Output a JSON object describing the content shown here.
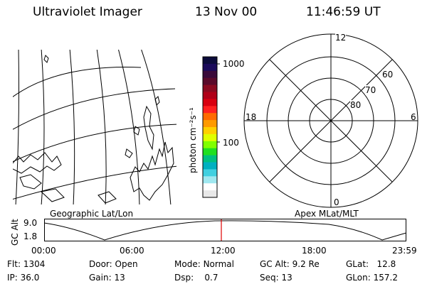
{
  "header": {
    "instrument": "Ultraviolet Imager",
    "date": "13 Nov 00",
    "time": "11:46:59 UT"
  },
  "colorbar": {
    "unit_label": "photon cm⁻²s⁻¹",
    "ticks": [
      "1000",
      "100"
    ],
    "colors": [
      "#0b0b3a",
      "#1a0a5a",
      "#3a0a3a",
      "#5a0a2a",
      "#8a0a20",
      "#b00018",
      "#d80010",
      "#ff2020",
      "#ff6a00",
      "#ff9a00",
      "#ffd000",
      "#e0ff00",
      "#80ff00",
      "#20e020",
      "#00c080",
      "#00b0c0",
      "#40d0e0",
      "#a0e8f0",
      "#ffffff",
      "#e8e8e8"
    ]
  },
  "polar_plot": {
    "mlt_labels": {
      "top": "12",
      "left": "18",
      "right": "6",
      "bottom": "0"
    },
    "lat_labels": [
      "60",
      "70",
      "80"
    ]
  },
  "map_caption": "Geographic Lat/Lon",
  "polar_caption": "Apex MLat/MLT",
  "timeline": {
    "ylabel": "GC Alt",
    "y_ticks": [
      "9.0",
      "1.8"
    ],
    "x_ticks": [
      "00:00",
      "06:00",
      "12:00",
      "18:00",
      "23:59"
    ],
    "marker_color": "#e00000"
  },
  "info": {
    "flt_label": "Flt:",
    "flt_value": "1304",
    "ip_label": "IP:",
    "ip_value": "36.0",
    "door_label": "Door:",
    "door_value": "Open",
    "gain_label": "Gain:",
    "gain_value": "13",
    "mode_label": "Mode:",
    "mode_value": "Normal",
    "dsp_label": "Dsp:",
    "dsp_value": "0.7",
    "gcalt_label": "GC Alt:",
    "gcalt_value": "9.2 Re",
    "seq_label": "Seq:",
    "seq_value": "13",
    "glat_label": "GLat:",
    "glat_value": "12.8",
    "glon_label": "GLon:",
    "glon_value": "157.2"
  }
}
